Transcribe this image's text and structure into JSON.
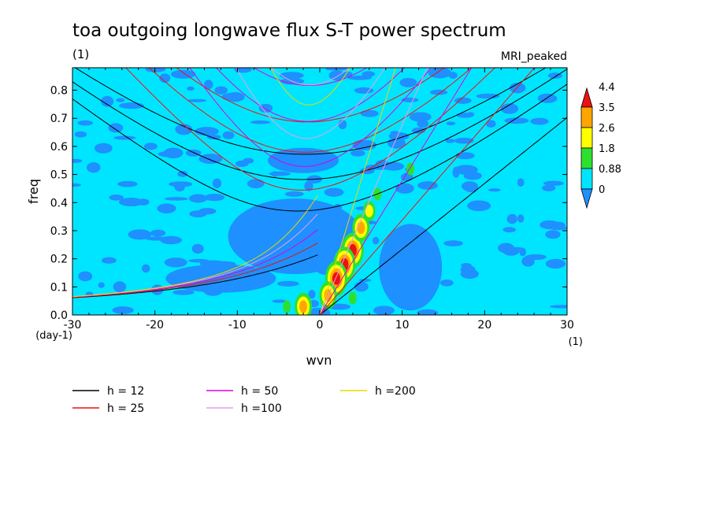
{
  "chart_data": {
    "type": "heatmap",
    "title": "toa outgoing longwave flux S-T power spectrum",
    "subtitle_left": "(1)",
    "subtitle_right": "MRI_peaked",
    "xlabel": "wvn",
    "ylabel": "freq",
    "x_unit": "(1)",
    "y_unit": "(day-1)",
    "xlim": [
      -30,
      30
    ],
    "ylim": [
      0,
      0.88
    ],
    "x_ticks": [
      -30,
      -20,
      -10,
      0,
      10,
      20,
      30
    ],
    "x_tick_labels": [
      "-30",
      "-20",
      "-10",
      "0",
      "10",
      "20",
      "30"
    ],
    "y_ticks": [
      0,
      0.1,
      0.2,
      0.3,
      0.4,
      0.5,
      0.6,
      0.7,
      0.8
    ],
    "y_tick_labels": [
      "0.0",
      "0.1",
      "0.2",
      "0.3",
      "0.4",
      "0.5",
      "0.6",
      "0.7",
      "0.8"
    ],
    "colorbar": {
      "levels": [
        "0",
        "0.88",
        "1.8",
        "2.6",
        "3.5",
        "4.4"
      ],
      "colors": [
        "#1e90ff",
        "#00e5ff",
        "#2ee02e",
        "#ffff00",
        "#ffa500",
        "#ee1111"
      ]
    },
    "dispersion_series": [
      {
        "name": "h = 12",
        "h": 12,
        "color": "#000000"
      },
      {
        "name": "h = 25",
        "h": 25,
        "color": "#ee1111"
      },
      {
        "name": "h = 50",
        "h": 50,
        "color": "#dd00dd"
      },
      {
        "name": "h =100",
        "h": 100,
        "color": "#e89ee8"
      },
      {
        "name": "h =200",
        "h": 200,
        "color": "#e8d800"
      }
    ],
    "power_peaks": [
      {
        "wvn": 4,
        "freq": 0.23,
        "level": 4.4
      },
      {
        "wvn": 3,
        "freq": 0.18,
        "level": 4.4
      },
      {
        "wvn": 2,
        "freq": 0.13,
        "level": 4.4
      },
      {
        "wvn": 1,
        "freq": 0.07,
        "level": 3.5
      },
      {
        "wvn": 5,
        "freq": 0.31,
        "level": 3.5
      },
      {
        "wvn": 6,
        "freq": 0.37,
        "level": 2.6
      },
      {
        "wvn": 7,
        "freq": 0.43,
        "level": 1.8
      },
      {
        "wvn": -2,
        "freq": 0.03,
        "level": 3.5
      },
      {
        "wvn": -4,
        "freq": 0.03,
        "level": 1.8
      },
      {
        "wvn": 4,
        "freq": 0.06,
        "level": 1.8
      },
      {
        "wvn": 11,
        "freq": 0.52,
        "level": 1.8
      }
    ]
  }
}
